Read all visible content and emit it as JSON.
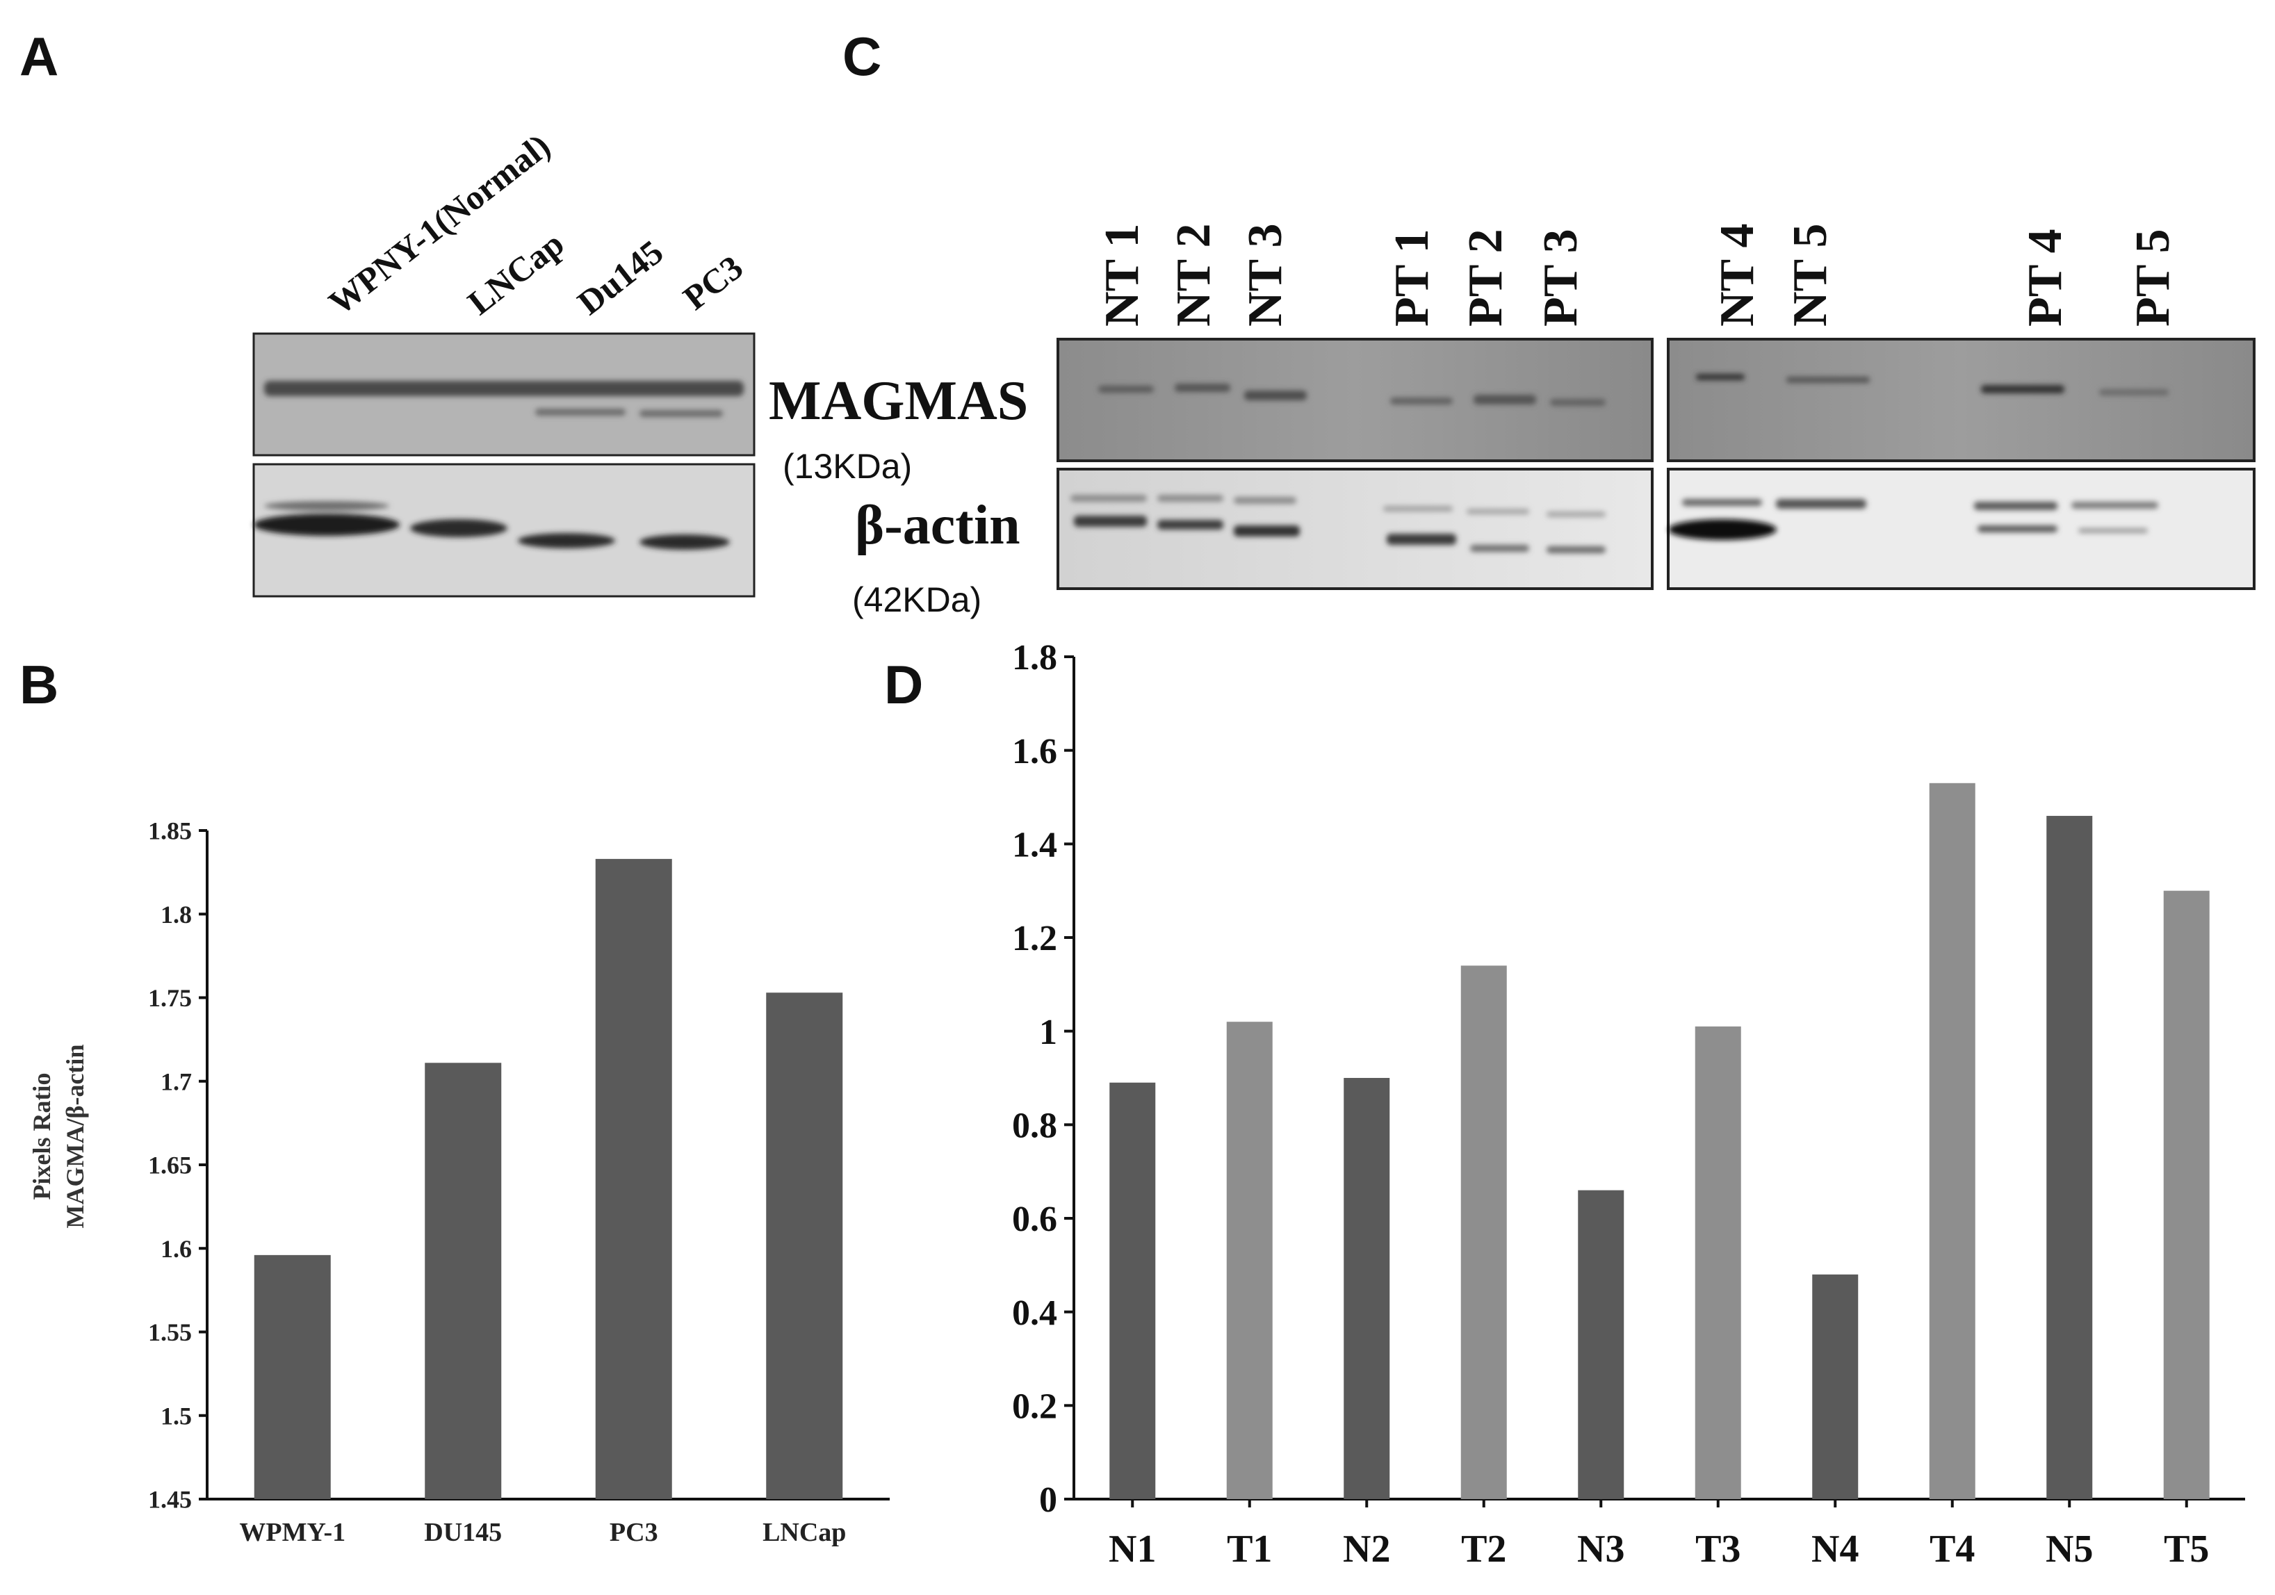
{
  "panels": {
    "a": "A",
    "b": "B",
    "c": "C",
    "d": "D"
  },
  "blot_a": {
    "lanes": [
      "WPNY-1(Normal)",
      "LNCap",
      "Du145",
      "PC3"
    ]
  },
  "blot_c": {
    "lanes_left": [
      "NT 1",
      "NT 2",
      "NT 3",
      "PT 1",
      "PT 2",
      "PT 3"
    ],
    "lanes_right": [
      "NT 4",
      "NT 5",
      "PT 4",
      "PT 5"
    ],
    "protein_1": "MAGMAS",
    "protein_1_kda": "(13KDa)",
    "protein_2": "β-actin",
    "protein_2_kda": "(42KDa)"
  },
  "colors": {
    "bar_dark": "#5a5a5a",
    "bar_light": "#8e8e8e",
    "axis": "#111111"
  },
  "chart_data": [
    {
      "id": "B",
      "type": "bar",
      "title": "",
      "categories": [
        "WPMY-1",
        "DU145",
        "PC3",
        "LNCap"
      ],
      "values": [
        1.596,
        1.711,
        1.833,
        1.753
      ],
      "xlabel": "",
      "ylabel_line1": "Pixels Ratio",
      "ylabel_line2": "MAGMA/β-actin",
      "ylim": [
        1.45,
        1.85
      ],
      "ticks": [
        "1.45",
        "1.5",
        "1.55",
        "1.6",
        "1.65",
        "1.7",
        "1.75",
        "1.8",
        "1.85"
      ]
    },
    {
      "id": "D",
      "type": "bar",
      "title": "",
      "categories": [
        "N1",
        "T1",
        "N2",
        "T2",
        "N3",
        "T3",
        "N4",
        "T4",
        "N5",
        "T5"
      ],
      "values": [
        0.89,
        1.02,
        0.9,
        1.14,
        0.66,
        1.01,
        0.48,
        1.53,
        1.46,
        1.3
      ],
      "shade": [
        "dark",
        "light",
        "dark",
        "light",
        "dark",
        "light",
        "dark",
        "light",
        "dark",
        "light"
      ],
      "xlabel": "",
      "ylabel": "",
      "ylim": [
        0,
        1.8
      ],
      "ticks": [
        "0",
        "0.2",
        "0.4",
        "0.6",
        "0.8",
        "1",
        "1.2",
        "1.4",
        "1.6",
        "1.8"
      ]
    }
  ]
}
